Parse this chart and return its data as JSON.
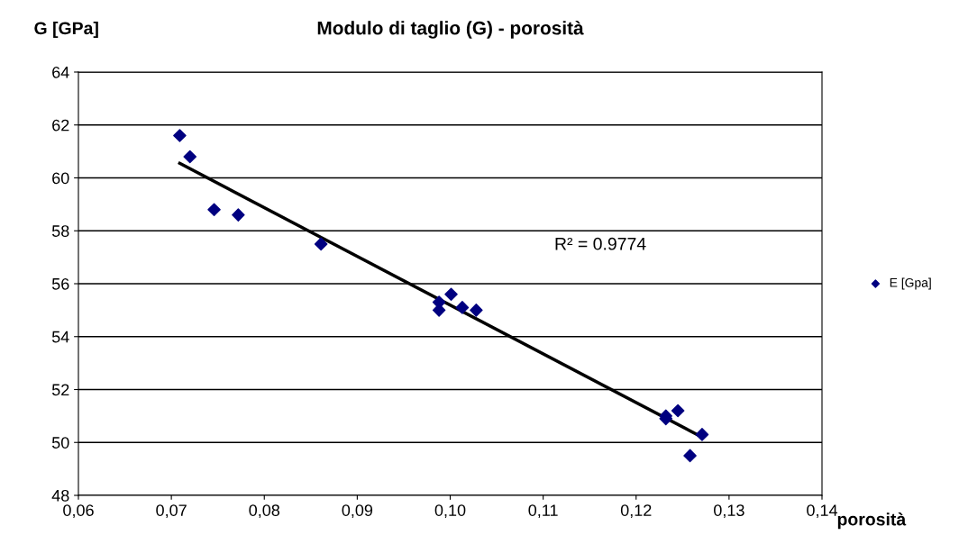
{
  "chart_data": {
    "type": "scatter",
    "title": "Modulo di taglio (G) - porosità",
    "xlabel": "porosità",
    "ylabel": "G [GPa]",
    "annotations": [
      "R² = 0.9774"
    ],
    "series": [
      {
        "name": "E [Gpa]",
        "color": "#000080",
        "marker": "diamond",
        "x": [
          0.0709,
          0.072,
          0.0746,
          0.0772,
          0.0861,
          0.0988,
          0.0988,
          0.1001,
          0.1013,
          0.1028,
          0.1232,
          0.1232,
          0.1245,
          0.1258,
          0.1271
        ],
        "values": [
          61.6,
          60.8,
          58.8,
          58.6,
          57.5,
          55.3,
          55.0,
          55.6,
          55.1,
          55.0,
          51.0,
          50.9,
          51.2,
          49.5,
          50.3
        ]
      },
      {
        "type": "line",
        "color": "#000000",
        "line_style": "solid",
        "x": [
          0.0709,
          0.1271
        ],
        "values": [
          60.55,
          50.2
        ]
      }
    ],
    "xlim": [
      0.06,
      0.14
    ],
    "ylim": [
      48,
      64
    ],
    "xticks": [
      {
        "value": 0.06,
        "label": "0,06"
      },
      {
        "value": 0.07,
        "label": "0,07"
      },
      {
        "value": 0.08,
        "label": "0,08"
      },
      {
        "value": 0.09,
        "label": "0,09"
      },
      {
        "value": 0.1,
        "label": "0,10"
      },
      {
        "value": 0.11,
        "label": "0,11"
      },
      {
        "value": 0.12,
        "label": "0,12"
      },
      {
        "value": 0.13,
        "label": "0,13"
      },
      {
        "value": 0.14,
        "label": "0,14"
      }
    ],
    "yticks": [
      48,
      50,
      52,
      54,
      56,
      58,
      60,
      62,
      64
    ],
    "grid": "y",
    "legend": "right"
  }
}
